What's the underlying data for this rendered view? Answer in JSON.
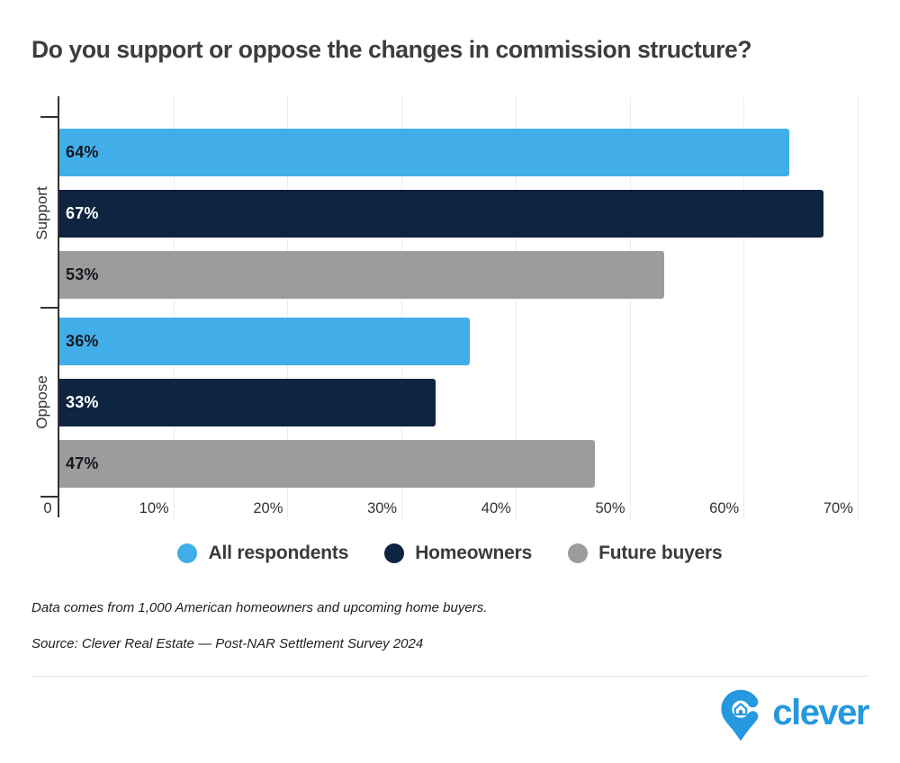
{
  "title": "Do you support or oppose the changes in commission structure?",
  "chart_data": {
    "type": "bar",
    "orientation": "horizontal",
    "title": "Do you support or oppose the changes in commission structure?",
    "categories": [
      "Support",
      "Oppose"
    ],
    "series": [
      {
        "name": "All respondents",
        "color": "#42AEE9",
        "label_color": "#15191e",
        "values": [
          64,
          36
        ]
      },
      {
        "name": "Homeowners",
        "color": "#0E2440",
        "label_color": "#ffffff",
        "values": [
          67,
          33
        ]
      },
      {
        "name": "Future buyers",
        "color": "#9C9C9C",
        "label_color": "#15191e",
        "values": [
          53,
          47
        ]
      }
    ],
    "value_suffix": "%",
    "x_axis": {
      "ticks": [
        0,
        10,
        20,
        30,
        40,
        50,
        60,
        70
      ],
      "tick_labels": [
        "0",
        "10%",
        "20%",
        "30%",
        "40%",
        "50%",
        "60%",
        "70%"
      ],
      "max": 73
    },
    "grid": true,
    "legend_position": "bottom",
    "axis_color": "#333333"
  },
  "footnotes": {
    "note": "Data comes from 1,000 American homeowners and upcoming home buyers.",
    "source": "Source: Clever Real Estate — Post-NAR Settlement Survey 2024"
  },
  "branding": {
    "wordmark": "clever",
    "logo_icon": "clever-pin-house-icon",
    "color": "#2598DF"
  }
}
